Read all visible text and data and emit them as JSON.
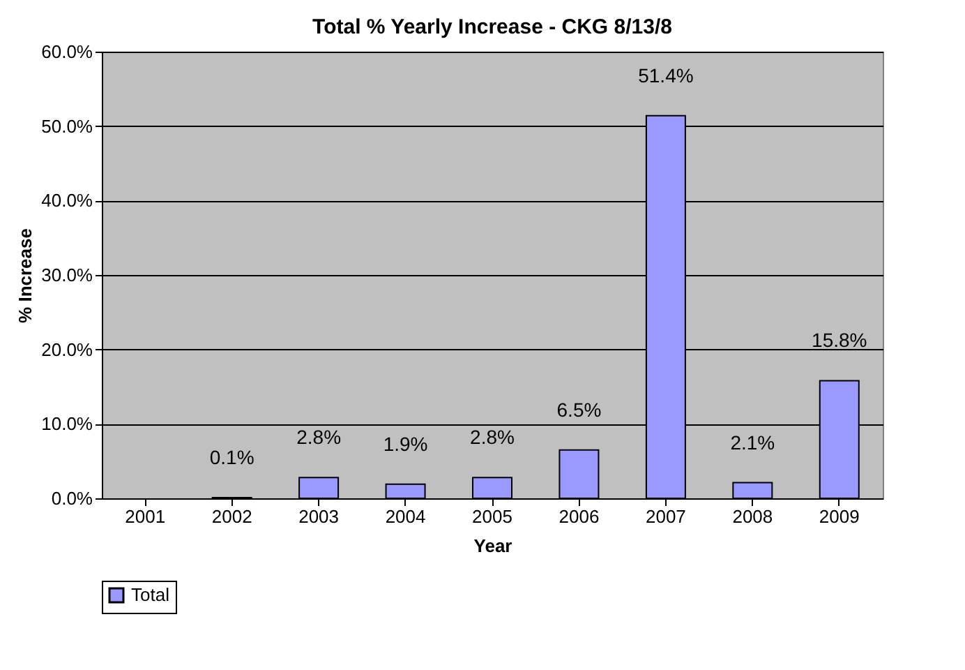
{
  "chart_data": {
    "type": "bar",
    "title": "Total % Yearly Increase - CKG 8/13/8",
    "xlabel": "Year",
    "ylabel": "% Increase",
    "categories": [
      "2001",
      "2002",
      "2003",
      "2004",
      "2005",
      "2006",
      "2007",
      "2008",
      "2009"
    ],
    "series": [
      {
        "name": "Total",
        "color": "#9999ff",
        "values": [
          null,
          0.1,
          2.8,
          1.9,
          2.8,
          6.5,
          51.4,
          2.1,
          15.8
        ],
        "value_labels": [
          null,
          "0.1%",
          "2.8%",
          "1.9%",
          "2.8%",
          "6.5%",
          "51.4%",
          "2.1%",
          "15.8%"
        ]
      }
    ],
    "ylim": [
      0,
      60
    ],
    "yticks": [
      {
        "value": 0,
        "label": "0.0%"
      },
      {
        "value": 10,
        "label": "10.0%"
      },
      {
        "value": 20,
        "label": "20.0%"
      },
      {
        "value": 30,
        "label": "30.0%"
      },
      {
        "value": 40,
        "label": "40.0%"
      },
      {
        "value": 50,
        "label": "50.0%"
      },
      {
        "value": 60,
        "label": "60.0%"
      }
    ],
    "grid": "y",
    "legend": "bottom"
  }
}
